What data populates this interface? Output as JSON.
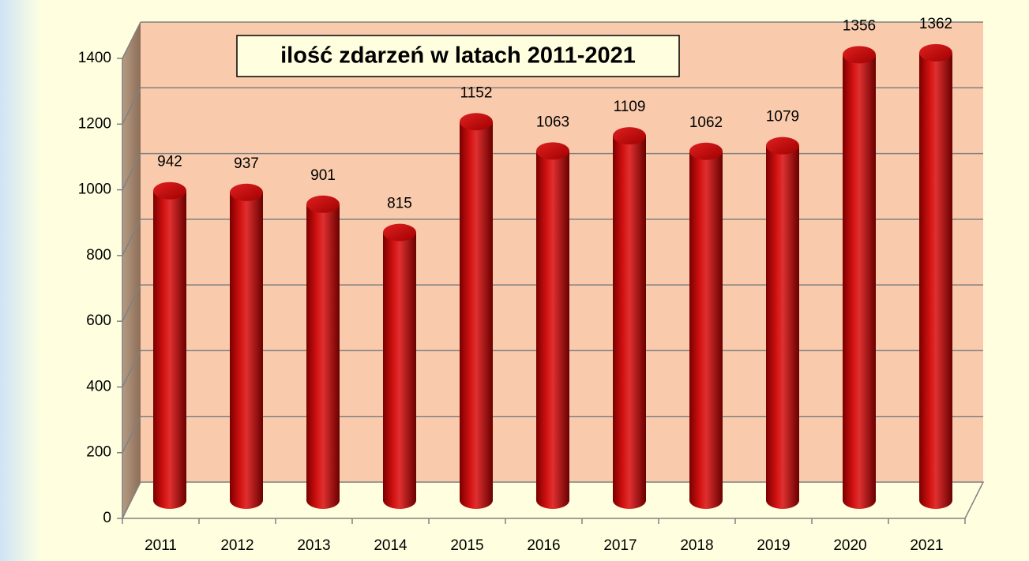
{
  "chart_data": {
    "type": "bar",
    "title": "ilość zdarzeń w latach 2011-2021",
    "categories": [
      "2011",
      "2012",
      "2013",
      "2014",
      "2015",
      "2016",
      "2017",
      "2018",
      "2019",
      "2020",
      "2021"
    ],
    "values": [
      942,
      937,
      901,
      815,
      1152,
      1063,
      1109,
      1062,
      1079,
      1356,
      1362
    ],
    "color": "#c00000",
    "ylim": [
      0,
      1400
    ],
    "yticks": [
      0,
      200,
      400,
      600,
      800,
      1000,
      1200,
      1400
    ],
    "grid": true
  }
}
